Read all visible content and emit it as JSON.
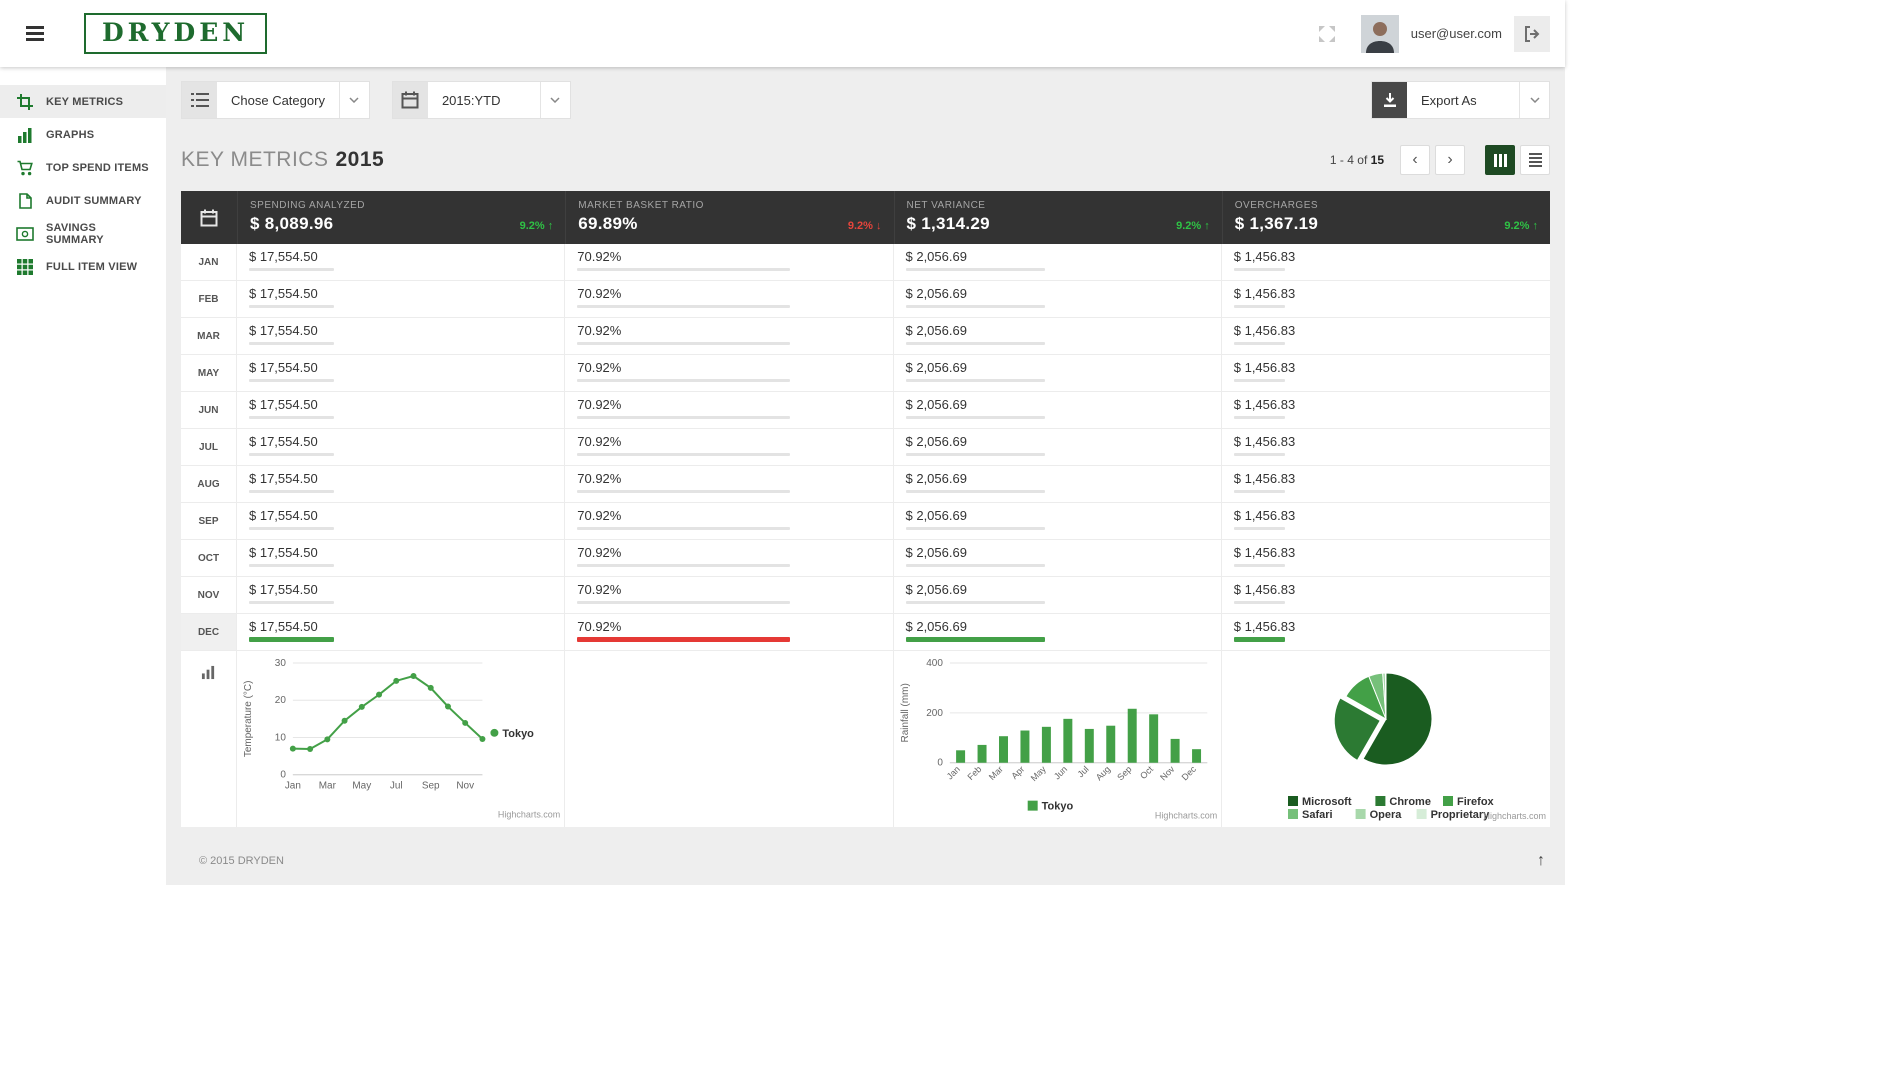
{
  "header": {
    "logo": "DRYDEN",
    "user_email": "user@user.com"
  },
  "sidebar": {
    "items": [
      {
        "id": "key-metrics",
        "label": "KEY METRICS",
        "icon": "crop-icon",
        "active": true
      },
      {
        "id": "graphs",
        "label": "GRAPHS",
        "icon": "bar-chart-icon",
        "active": false
      },
      {
        "id": "top-spend-items",
        "label": "TOP SPEND ITEMS",
        "icon": "cart-icon",
        "active": false
      },
      {
        "id": "audit-summary",
        "label": "AUDIT SUMMARY",
        "icon": "document-icon",
        "active": false
      },
      {
        "id": "savings-summary",
        "label": "SAVINGS SUMMARY",
        "icon": "banknote-icon",
        "active": false
      },
      {
        "id": "full-item-view",
        "label": "FULL ITEM VIEW",
        "icon": "grid-icon",
        "active": false
      }
    ]
  },
  "toolbar": {
    "category_select": "Chose Category",
    "period_select": "2015:YTD",
    "export_label": "Export As"
  },
  "page": {
    "title": "KEY METRICS",
    "title_year": "2015",
    "pagination": {
      "range": "1 - 4",
      "of_label": "of",
      "total": "15"
    }
  },
  "table": {
    "columns": [
      {
        "label": "SPENDING ANALYZED",
        "value": "$ 8,089.96",
        "change": "9.2%",
        "direction": "up"
      },
      {
        "label": "MARKET BASKET RATIO",
        "value": "69.89%",
        "change": "9.2%",
        "direction": "down"
      },
      {
        "label": "NET VARIANCE",
        "value": "$ 1,314.29",
        "change": "9.2%",
        "direction": "up"
      },
      {
        "label": "OVERCHARGES",
        "value": "$ 1,367.19",
        "change": "9.2%",
        "direction": "up"
      }
    ],
    "bar_widths_pct": [
      28,
      70,
      46,
      17
    ],
    "highlight_bar_colors": [
      "#43a047",
      "#e53935",
      "#43a047",
      "#43a047"
    ],
    "rows": [
      {
        "month": "JAN",
        "values": [
          "$ 17,554.50",
          "70.92%",
          "$ 2,056.69",
          "$ 1,456.83"
        ],
        "highlight": false
      },
      {
        "month": "FEB",
        "values": [
          "$ 17,554.50",
          "70.92%",
          "$ 2,056.69",
          "$ 1,456.83"
        ],
        "highlight": false
      },
      {
        "month": "MAR",
        "values": [
          "$ 17,554.50",
          "70.92%",
          "$ 2,056.69",
          "$ 1,456.83"
        ],
        "highlight": false
      },
      {
        "month": "MAY",
        "values": [
          "$ 17,554.50",
          "70.92%",
          "$ 2,056.69",
          "$ 1,456.83"
        ],
        "highlight": false
      },
      {
        "month": "JUN",
        "values": [
          "$ 17,554.50",
          "70.92%",
          "$ 2,056.69",
          "$ 1,456.83"
        ],
        "highlight": false
      },
      {
        "month": "JUL",
        "values": [
          "$ 17,554.50",
          "70.92%",
          "$ 2,056.69",
          "$ 1,456.83"
        ],
        "highlight": false
      },
      {
        "month": "AUG",
        "values": [
          "$ 17,554.50",
          "70.92%",
          "$ 2,056.69",
          "$ 1,456.83"
        ],
        "highlight": false
      },
      {
        "month": "SEP",
        "values": [
          "$ 17,554.50",
          "70.92%",
          "$ 2,056.69",
          "$ 1,456.83"
        ],
        "highlight": false
      },
      {
        "month": "OCT",
        "values": [
          "$ 17,554.50",
          "70.92%",
          "$ 2,056.69",
          "$ 1,456.83"
        ],
        "highlight": false
      },
      {
        "month": "NOV",
        "values": [
          "$ 17,554.50",
          "70.92%",
          "$ 2,056.69",
          "$ 1,456.83"
        ],
        "highlight": false
      },
      {
        "month": "DEC",
        "values": [
          "$ 17,554.50",
          "70.92%",
          "$ 2,056.69",
          "$ 1,456.83"
        ],
        "highlight": true
      }
    ]
  },
  "footer": {
    "copyright": "© 2015 DRYDEN"
  },
  "colors": {
    "brand_green": "#1e6b2e",
    "accent_green": "#43a047",
    "badge_up": "#2fc245",
    "badge_down": "#e5453c",
    "bar_red": "#e53935",
    "table_header_dark": "#333333",
    "active_view_toggle": "#1e4a23"
  },
  "chart_data": [
    {
      "type": "line",
      "name": "temperature-line-chart",
      "categories": [
        "Jan",
        "Feb",
        "Mar",
        "Apr",
        "May",
        "Jun",
        "Jul",
        "Aug",
        "Sep",
        "Oct",
        "Nov",
        "Dec"
      ],
      "series": [
        {
          "name": "Tokyo",
          "values": [
            7.0,
            6.9,
            9.5,
            14.5,
            18.2,
            21.5,
            25.2,
            26.5,
            23.3,
            18.3,
            13.9,
            9.6
          ]
        }
      ],
      "ylabel": "Temperature (°C)",
      "ylim": [
        0,
        30
      ],
      "yticks": [
        0,
        10,
        20,
        30
      ],
      "xtick_step": 2,
      "grid": true,
      "legend_position": "right",
      "color": "#43a047",
      "credit": "Highcharts.com"
    },
    {
      "type": "bar",
      "name": "rainfall-bar-chart",
      "categories": [
        "Jan",
        "Feb",
        "Mar",
        "Apr",
        "May",
        "Jun",
        "Jul",
        "Aug",
        "Sep",
        "Oct",
        "Nov",
        "Dec"
      ],
      "series": [
        {
          "name": "Tokyo",
          "values": [
            49.9,
            71.5,
            106.4,
            129.2,
            144.0,
            176.0,
            135.6,
            148.5,
            216.4,
            194.1,
            95.6,
            54.4
          ]
        }
      ],
      "ylabel": "Rainfall (mm)",
      "ylim": [
        0,
        400
      ],
      "yticks": [
        0,
        200,
        400
      ],
      "grid": true,
      "legend_position": "bottom",
      "color": "#43a047",
      "credit": "Highcharts.com"
    },
    {
      "type": "pie",
      "name": "browser-share-pie-chart",
      "labels": [
        "Microsoft",
        "Chrome",
        "Firefox",
        "Safari",
        "Opera",
        "Proprietary"
      ],
      "values": [
        56.33,
        24.03,
        10.38,
        4.77,
        0.91,
        0.2
      ],
      "colors": [
        "#1a5c20",
        "#2c7a33",
        "#43a047",
        "#76c07a",
        "#a8d8ab",
        "#d6edd8"
      ],
      "sliced_label": "Chrome",
      "legend_rows": [
        [
          "Microsoft",
          "Chrome",
          "Firefox"
        ],
        [
          "Safari",
          "Opera",
          "Proprietary"
        ]
      ],
      "credit": "Highcharts.com"
    }
  ]
}
